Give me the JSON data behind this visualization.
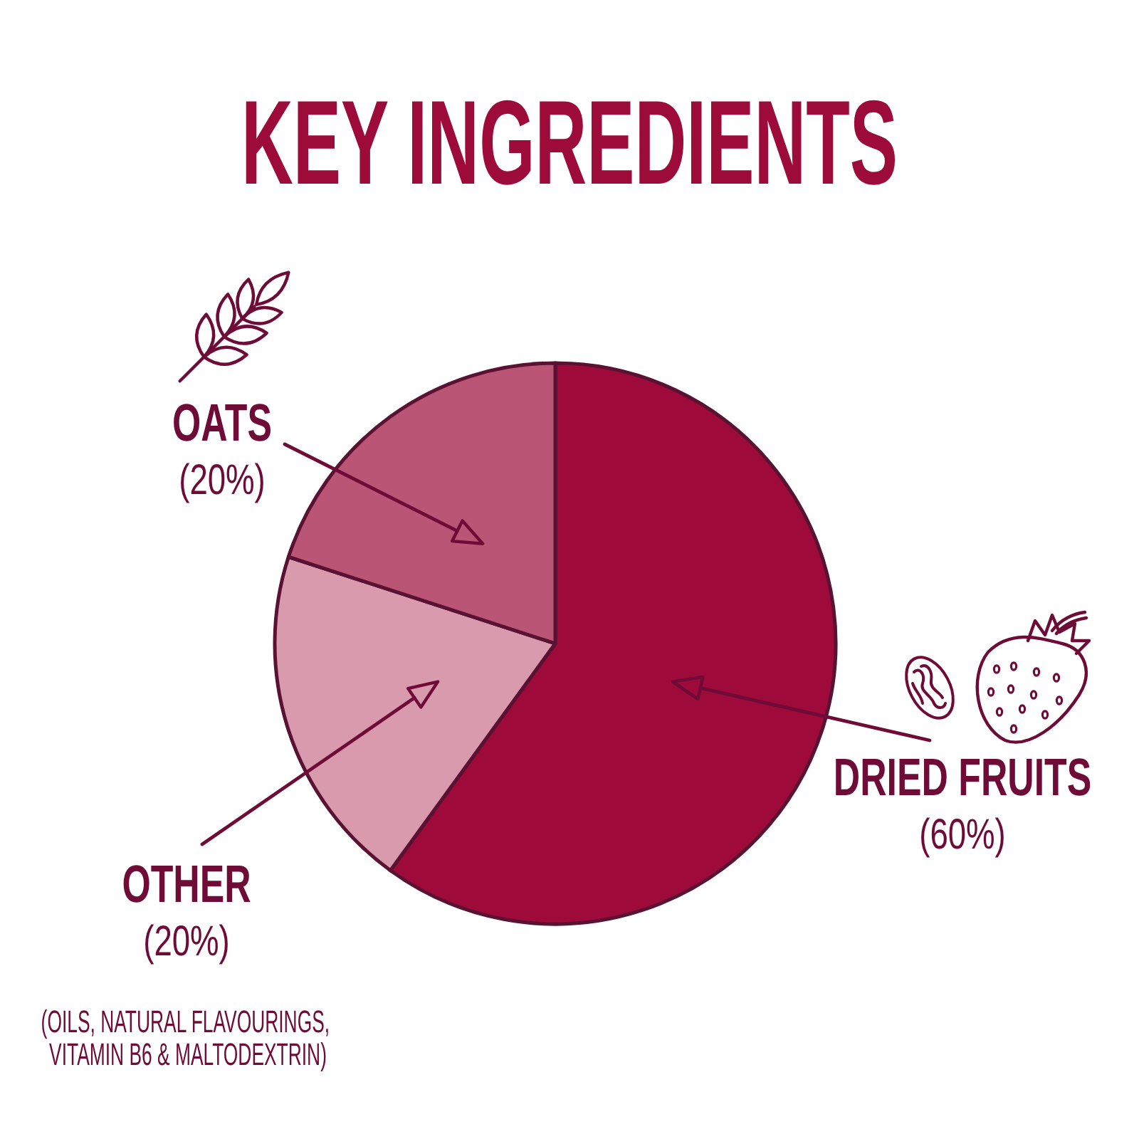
{
  "chart_data": {
    "type": "pie",
    "title": "KEY INGREDIENTS",
    "categories": [
      "DRIED FRUITS",
      "OTHER",
      "OATS"
    ],
    "values": [
      60,
      20,
      20
    ],
    "colors": [
      "#9e0a3a",
      "#d99aad",
      "#bb5575"
    ],
    "value_labels": [
      "(60%)",
      "(20%)",
      "(20%)"
    ],
    "annotations": [
      "(OILS, NATURAL FLAVOURINGS, VITAMIN B6 & MALTODEXTRIN)"
    ]
  }
}
